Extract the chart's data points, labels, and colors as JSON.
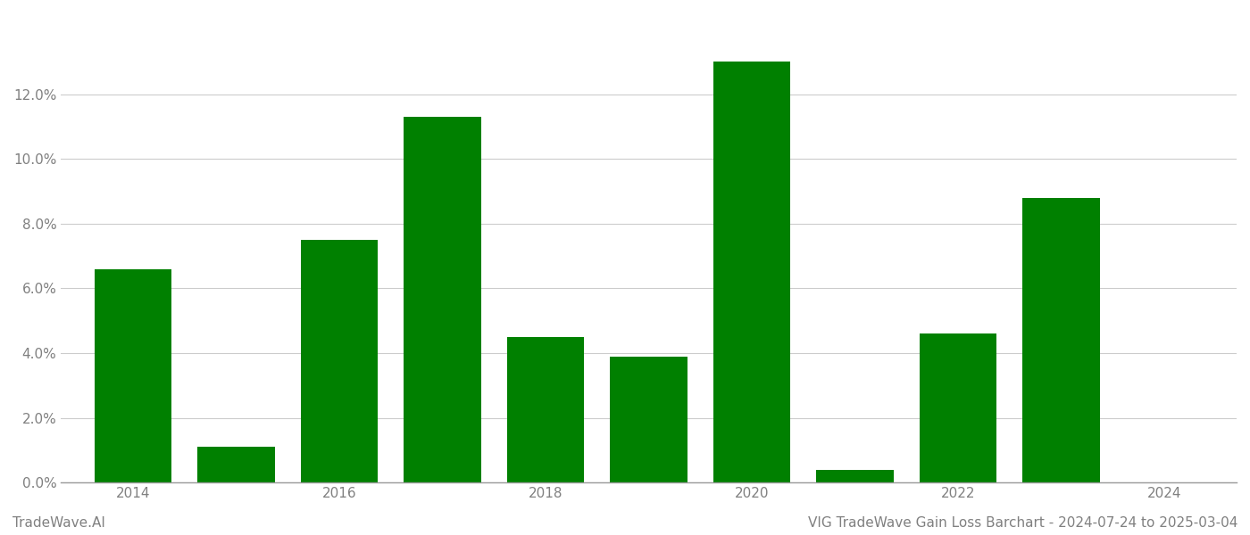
{
  "years": [
    2014,
    2015,
    2016,
    2017,
    2018,
    2019,
    2020,
    2021,
    2022,
    2023
  ],
  "values": [
    0.066,
    0.011,
    0.075,
    0.113,
    0.045,
    0.039,
    0.13,
    0.004,
    0.046,
    0.088
  ],
  "bar_color": "#008000",
  "background_color": "#ffffff",
  "grid_color": "#cccccc",
  "axis_color": "#999999",
  "ylabel_color": "#808080",
  "xlabel_color": "#808080",
  "ylim": [
    0,
    0.145
  ],
  "yticks": [
    0.0,
    0.02,
    0.04,
    0.06,
    0.08,
    0.1,
    0.12
  ],
  "xtick_positions": [
    2014,
    2016,
    2018,
    2020,
    2022,
    2024
  ],
  "xtick_labels": [
    "2014",
    "2016",
    "2018",
    "2020",
    "2022",
    "2024"
  ],
  "xlim_min": 2013.3,
  "xlim_max": 2024.7,
  "bar_width": 0.75,
  "footer_left": "TradeWave.AI",
  "footer_right": "VIG TradeWave Gain Loss Barchart - 2024-07-24 to 2025-03-04",
  "footer_color": "#808080",
  "footer_fontsize": 11,
  "tick_labelsize": 11
}
